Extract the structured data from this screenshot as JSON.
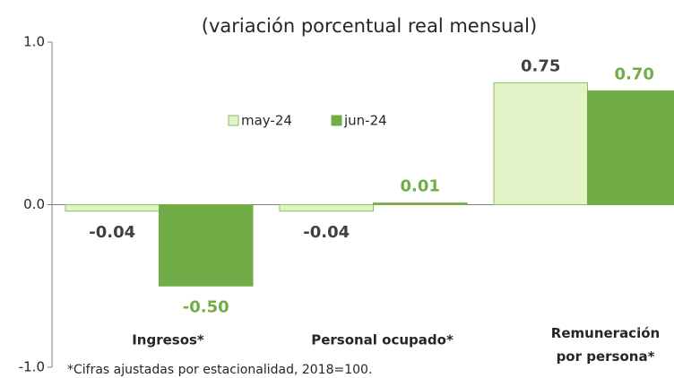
{
  "chart_data": {
    "type": "bar",
    "title": "(variación porcentual real mensual)",
    "categories": [
      "Ingresos*",
      "Personal ocupado*",
      "Remuneración por persona*"
    ],
    "series": [
      {
        "name": "may-24",
        "color": "#e2f3c8",
        "stroke": "#8cc063",
        "label_color": "#404040",
        "values": [
          -0.04,
          -0.04,
          0.75
        ],
        "value_labels": [
          "-0.04",
          "-0.04",
          "0.75"
        ]
      },
      {
        "name": "jun-24",
        "color": "#70ad47",
        "stroke": "#70ad47",
        "label_color": "#70ad47",
        "values": [
          -0.5,
          0.01,
          0.7
        ],
        "value_labels": [
          "-0.50",
          "0.01",
          "0.70"
        ]
      }
    ],
    "ylim": [
      -1,
      1
    ],
    "yticks": [
      {
        "value": -1,
        "label": "-1.0"
      },
      {
        "value": 0,
        "label": "0.0"
      },
      {
        "value": 1,
        "label": "1.0"
      }
    ],
    "note": "*Cifras ajustadas por estacionalidad, 2018=100."
  }
}
